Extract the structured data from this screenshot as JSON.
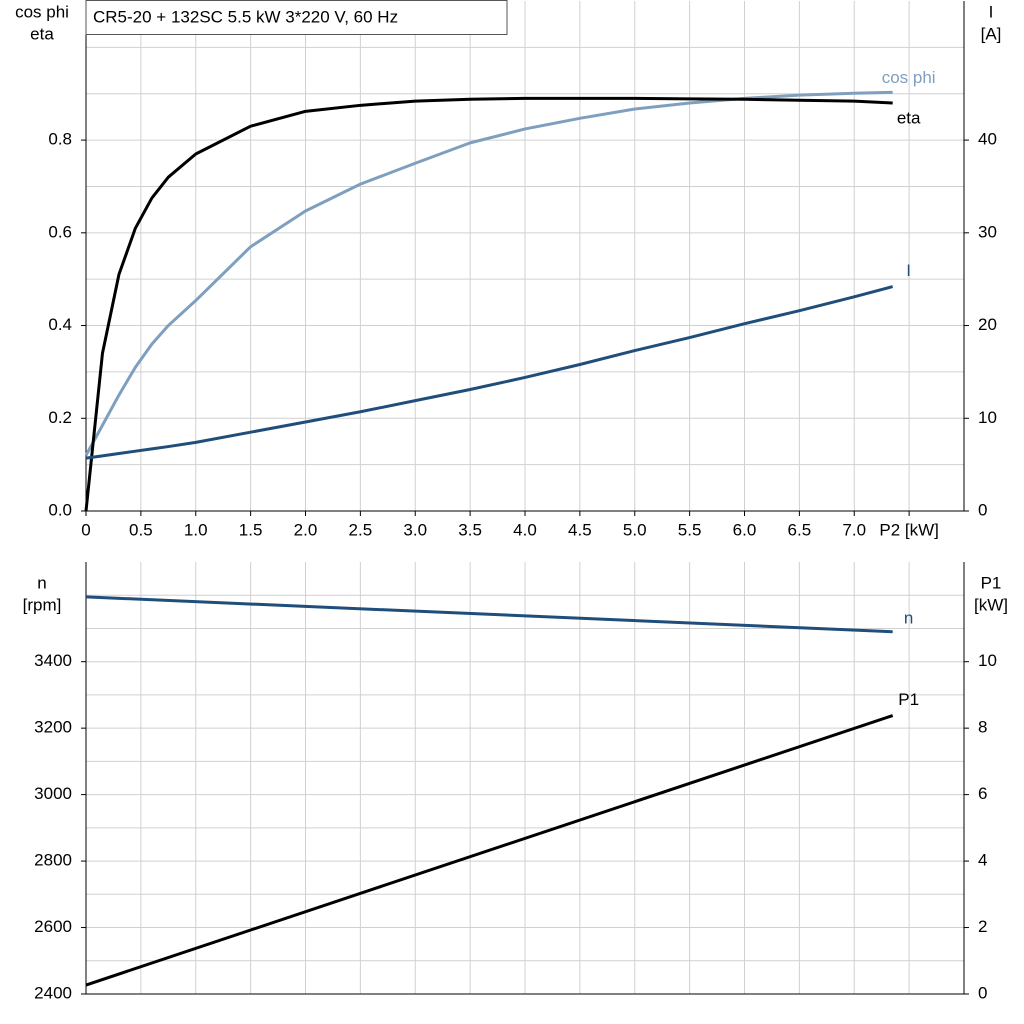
{
  "chart_data": [
    {
      "type": "line",
      "title": "CR5-20 + 132SC   5.5 kW   3*220 V, 60 Hz",
      "ylabel": [
        "cos phi",
        "eta"
      ],
      "y2label": [
        "I",
        "[A]"
      ],
      "x": [
        0,
        0.15,
        0.3,
        0.45,
        0.6,
        0.75,
        1.0,
        1.5,
        2.0,
        2.5,
        3.0,
        3.5,
        4.0,
        4.5,
        5.0,
        5.5,
        6.0,
        6.5,
        7.0,
        7.35
      ],
      "xlim": [
        0,
        8
      ],
      "xticks": [
        0,
        0.5,
        {
          "value": 1.0,
          "label": "1.0"
        },
        1.5,
        {
          "value": 2.0,
          "label": "2.0"
        },
        2.5,
        {
          "value": 3.0,
          "label": "3.0"
        },
        3.5,
        {
          "value": 4.0,
          "label": "4.0"
        },
        4.5,
        {
          "value": 5.0,
          "label": "5.0"
        },
        5.5,
        {
          "value": 6.0,
          "label": "6.0"
        },
        6.5,
        {
          "value": 7.0,
          "label": "7.0"
        },
        {
          "value": 7.5,
          "label": "P2 [kW]"
        }
      ],
      "ylim": [
        0,
        1.1
      ],
      "yticks": [
        {
          "value": 0,
          "label": "0.0"
        },
        0.2,
        0.4,
        0.6,
        0.8
      ],
      "y2lim": [
        0,
        55
      ],
      "y2ticks": [
        0,
        10,
        20,
        30,
        40
      ],
      "grid": true,
      "series": [
        {
          "name": "cos phi",
          "color": "#7f9fbf",
          "values": [
            0.12,
            0.185,
            0.25,
            0.31,
            0.36,
            0.4,
            0.454,
            0.57,
            0.647,
            0.705,
            0.75,
            0.794,
            0.824,
            0.847,
            0.867,
            0.88,
            0.89,
            0.897,
            0.901,
            0.903
          ]
        },
        {
          "name": "eta",
          "color": "#000000",
          "values": [
            0,
            0.34,
            0.51,
            0.61,
            0.675,
            0.72,
            0.77,
            0.83,
            0.862,
            0.875,
            0.884,
            0.888,
            0.89,
            0.89,
            0.89,
            0.889,
            0.888,
            0.886,
            0.884,
            0.88
          ]
        },
        {
          "name": "I",
          "color": "#1f4e7a",
          "axis": "y2",
          "values": [
            5.7,
            5.95,
            6.2,
            6.45,
            6.7,
            6.95,
            7.4,
            8.5,
            9.6,
            10.7,
            11.9,
            13.1,
            14.4,
            15.8,
            17.3,
            18.7,
            20.2,
            21.6,
            23.1,
            24.2
          ]
        }
      ]
    },
    {
      "type": "line",
      "ylabel": [
        "n",
        "[rpm]"
      ],
      "y2label": [
        "P1",
        "[kW]"
      ],
      "x": [
        0,
        7.35
      ],
      "xlim": [
        0,
        8
      ],
      "ylim": [
        2400,
        3700
      ],
      "yticks": [
        2400,
        2600,
        2800,
        3000,
        3200,
        3400
      ],
      "y2lim": [
        0,
        13
      ],
      "y2ticks": [
        0,
        2,
        4,
        6,
        8,
        10
      ],
      "grid": true,
      "series": [
        {
          "name": "n",
          "color": "#1f4e7a",
          "values": [
            3595,
            3490
          ]
        },
        {
          "name": "P1",
          "color": "#000000",
          "axis": "y2",
          "values": [
            0.27,
            8.38
          ]
        }
      ]
    }
  ]
}
